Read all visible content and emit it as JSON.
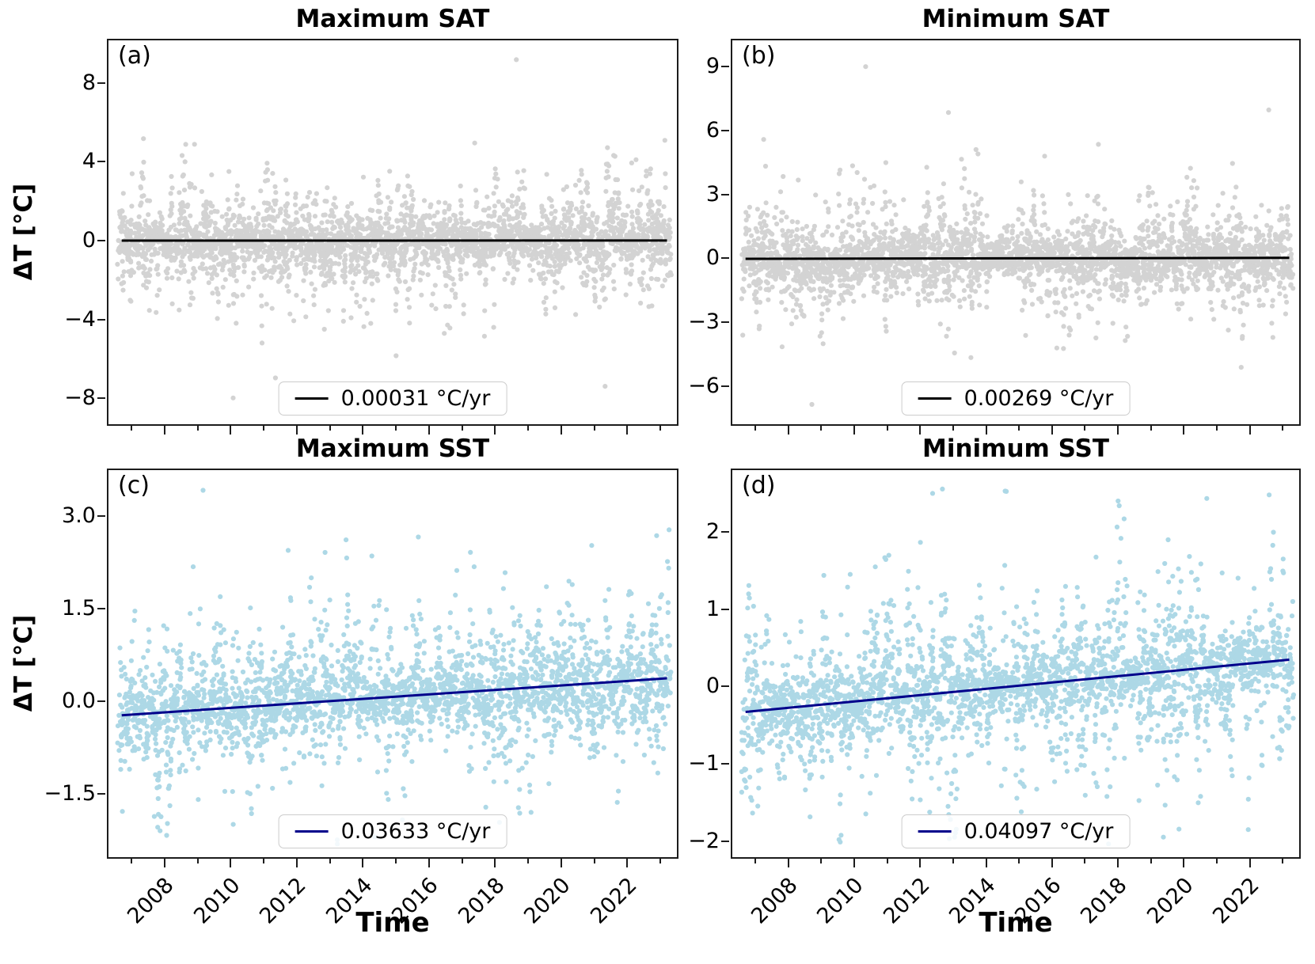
{
  "axes": {
    "ylabel": "ΔT [°C]",
    "xlabel": "Time"
  },
  "colors": {
    "sat_points": "#d3d3d3",
    "sst_points": "#add8e6",
    "sat_trend": "#000000",
    "sst_trend": "#00008b",
    "spine": "#1c1c1c",
    "background": "#ffffff"
  },
  "chart_data": [
    {
      "id": "a",
      "type": "scatter",
      "panel_label": "(a)",
      "title": "Maximum SAT",
      "legend_label": "0.00031 °C/yr",
      "legend_position": "lower center",
      "show_x_labels": false,
      "xlim": [
        2006.3,
        2023.5
      ],
      "ylim": [
        -9.32,
        10.16
      ],
      "ytick_values": [
        8,
        4,
        0,
        -4,
        -8
      ],
      "ytick_labels": [
        "8",
        "4",
        "0",
        "−4",
        "−8"
      ],
      "xtick_major_years": [
        2008,
        2010,
        2012,
        2014,
        2016,
        2018,
        2020,
        2022
      ],
      "xtick_major_labels": [
        "2008",
        "2010",
        "2012",
        "2014",
        "2016",
        "2018",
        "2020",
        "2022"
      ],
      "xtick_minor_years": [
        2007,
        2009,
        2011,
        2013,
        2015,
        2017,
        2019,
        2021,
        2023
      ],
      "trend": {
        "slope_per_year": 0.00031,
        "value_2015": 0.0,
        "x_start": 2006.7,
        "x_end": 2023.2,
        "color": "#000000"
      },
      "points": {
        "color": "#d3d3d3",
        "n": 3400,
        "seed": 101,
        "t_start": 2006.6,
        "t_end": 2023.3,
        "spread": 1.7,
        "burst_max": 1.8,
        "skew_pos": 1.0,
        "clip": [
          -8.6,
          9.4
        ],
        "summary": "Daily maximum surface-air-temperature anomalies; dense cloud around 0 °C, bulk within ±4 °C, extremes near +9.3 and −8.5 °C, essentially flat trend."
      }
    },
    {
      "id": "b",
      "type": "scatter",
      "panel_label": "(b)",
      "title": "Minimum SAT",
      "legend_label": "0.00269 °C/yr",
      "legend_position": "lower center",
      "show_x_labels": false,
      "xlim": [
        2006.3,
        2023.5
      ],
      "ylim": [
        -7.78,
        10.22
      ],
      "ytick_values": [
        9,
        6,
        3,
        0,
        -3,
        -6
      ],
      "ytick_labels": [
        "9",
        "6",
        "3",
        "0",
        "−3",
        "−6"
      ],
      "xtick_major_years": [
        2008,
        2010,
        2012,
        2014,
        2016,
        2018,
        2020,
        2022
      ],
      "xtick_major_labels": [
        "2008",
        "2010",
        "2012",
        "2014",
        "2016",
        "2018",
        "2020",
        "2022"
      ],
      "xtick_minor_years": [
        2007,
        2009,
        2011,
        2013,
        2015,
        2017,
        2019,
        2021,
        2023
      ],
      "trend": {
        "slope_per_year": 0.00269,
        "value_2015": 0.0,
        "x_start": 2006.7,
        "x_end": 2023.2,
        "color": "#000000"
      },
      "points": {
        "color": "#d3d3d3",
        "n": 3400,
        "seed": 202,
        "t_start": 2006.6,
        "t_end": 2023.3,
        "spread": 1.4,
        "burst_max": 1.9,
        "skew_pos": 1.25,
        "clip": [
          -6.9,
          9.35
        ],
        "summary": "Daily minimum surface-air-temperature anomalies; bulk within ±3 °C, sparse spikes to ~+9.3 and −6.9 °C, essentially flat trend."
      }
    },
    {
      "id": "c",
      "type": "scatter",
      "panel_label": "(c)",
      "title": "Maximum SST",
      "legend_label": "0.03633 °C/yr",
      "legend_position": "lower center",
      "show_x_labels": true,
      "xlim": [
        2006.3,
        2023.5
      ],
      "ylim": [
        -2.53,
        3.74
      ],
      "ytick_values": [
        3.0,
        1.5,
        0.0,
        -1.5
      ],
      "ytick_labels": [
        "3.0",
        "1.5",
        "0.0",
        "−1.5"
      ],
      "xtick_major_years": [
        2008,
        2010,
        2012,
        2014,
        2016,
        2018,
        2020,
        2022
      ],
      "xtick_major_labels": [
        "2008",
        "2010",
        "2012",
        "2014",
        "2016",
        "2018",
        "2020",
        "2022"
      ],
      "xtick_minor_years": [
        2007,
        2009,
        2011,
        2013,
        2015,
        2017,
        2019,
        2021,
        2023
      ],
      "trend": {
        "slope_per_year": 0.03633,
        "value_2015": 0.07,
        "x_start": 2006.7,
        "x_end": 2023.2,
        "color": "#00008b"
      },
      "points": {
        "color": "#add8e6",
        "n": 3000,
        "seed": 303,
        "t_start": 2006.6,
        "t_end": 2023.3,
        "spread": 0.7,
        "burst_max": 2.2,
        "skew_pos": 1.0,
        "clip": [
          -2.35,
          3.45
        ],
        "summary": "Daily maximum sea-surface-temperature anomalies; streaky columns, bulk −1.5…+1.5 °C, peaks to ~+3.5 °C, visible warming drift ≈0.036 °C/yr."
      }
    },
    {
      "id": "d",
      "type": "scatter",
      "panel_label": "(d)",
      "title": "Minimum SST",
      "legend_label": "0.04097 °C/yr",
      "legend_position": "lower center",
      "show_x_labels": true,
      "xlim": [
        2006.3,
        2023.5
      ],
      "ylim": [
        -2.21,
        2.8
      ],
      "ytick_values": [
        2,
        1,
        0,
        -1,
        -2
      ],
      "ytick_labels": [
        "2",
        "1",
        "0",
        "−1",
        "−2"
      ],
      "xtick_major_years": [
        2008,
        2010,
        2012,
        2014,
        2016,
        2018,
        2020,
        2022
      ],
      "xtick_major_labels": [
        "2008",
        "2010",
        "2012",
        "2014",
        "2016",
        "2018",
        "2020",
        "2022"
      ],
      "xtick_minor_years": [
        2007,
        2009,
        2011,
        2013,
        2015,
        2017,
        2019,
        2021,
        2023
      ],
      "trend": {
        "slope_per_year": 0.04097,
        "value_2015": 0.01,
        "x_start": 2006.7,
        "x_end": 2023.2,
        "color": "#00008b"
      },
      "points": {
        "color": "#add8e6",
        "n": 3000,
        "seed": 404,
        "t_start": 2006.6,
        "t_end": 2023.3,
        "spread": 0.6,
        "burst_max": 2.2,
        "skew_pos": 1.0,
        "clip": [
          -2.08,
          2.62
        ],
        "summary": "Daily minimum sea-surface-temperature anomalies; streaky columns, bulk −1…+1 °C, peaks to ~+2.6 °C, visible warming drift ≈0.041 °C/yr."
      }
    }
  ]
}
